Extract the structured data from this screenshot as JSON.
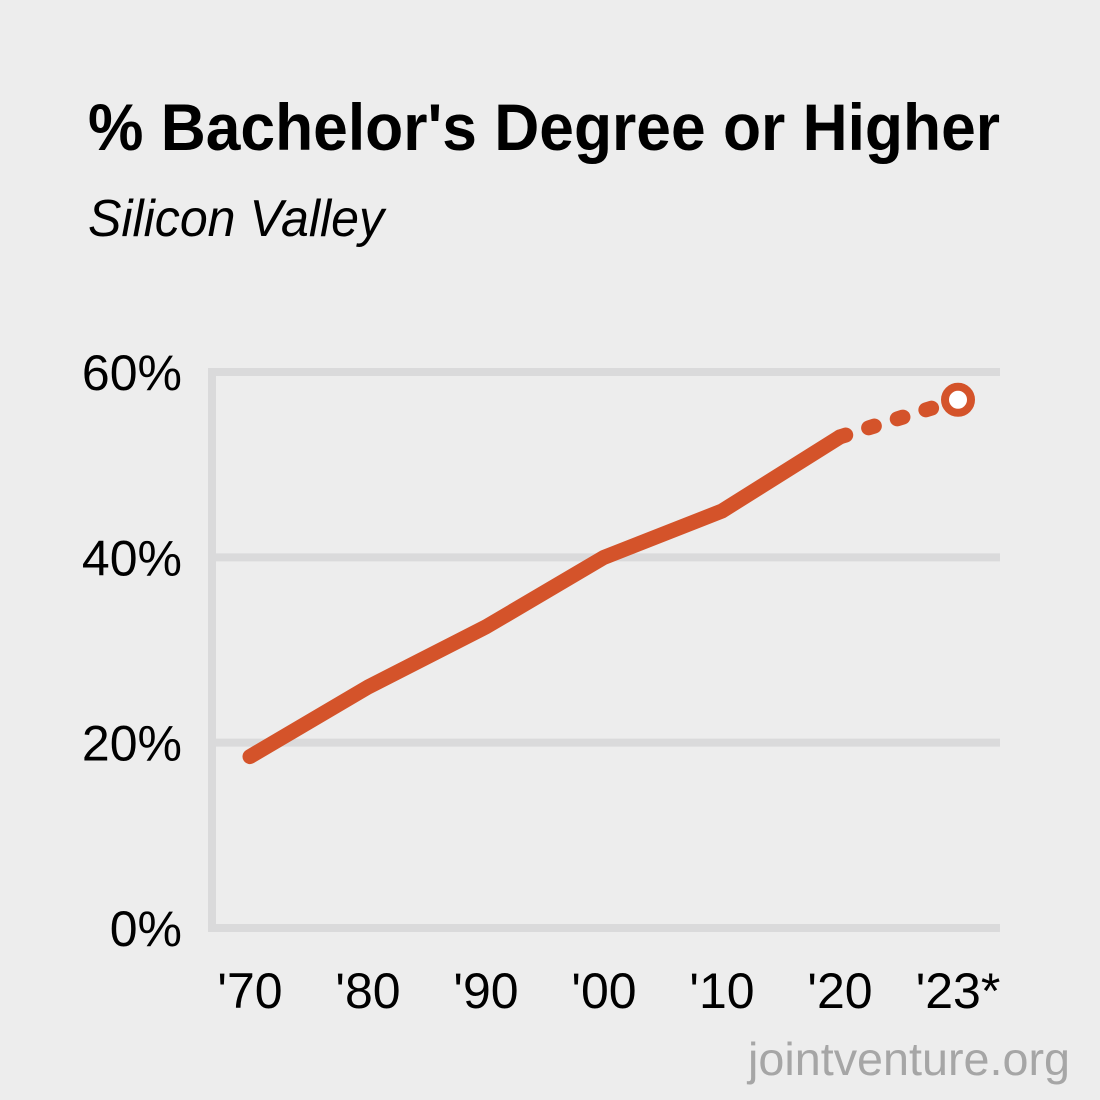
{
  "chart_data": {
    "type": "line",
    "title": "% Bachelor's Degree or Higher",
    "subtitle": "Silicon Valley",
    "categories": [
      "'70",
      "'80",
      "'90",
      "'00",
      "'10",
      "'20",
      "'23*"
    ],
    "series": [
      {
        "values": [
          18.5,
          26,
          32.5,
          40,
          45,
          53,
          57
        ],
        "color": "#d4532a",
        "projected_from_index": 5
      }
    ],
    "yticks": [
      "0%",
      "20%",
      "40%",
      "60%"
    ],
    "ytick_values": [
      0,
      20,
      40,
      60
    ],
    "ylim": [
      0,
      60
    ],
    "grid": true,
    "grid_color": "#dadadb",
    "background_color": "#ededed",
    "source": "jointventure.org"
  }
}
